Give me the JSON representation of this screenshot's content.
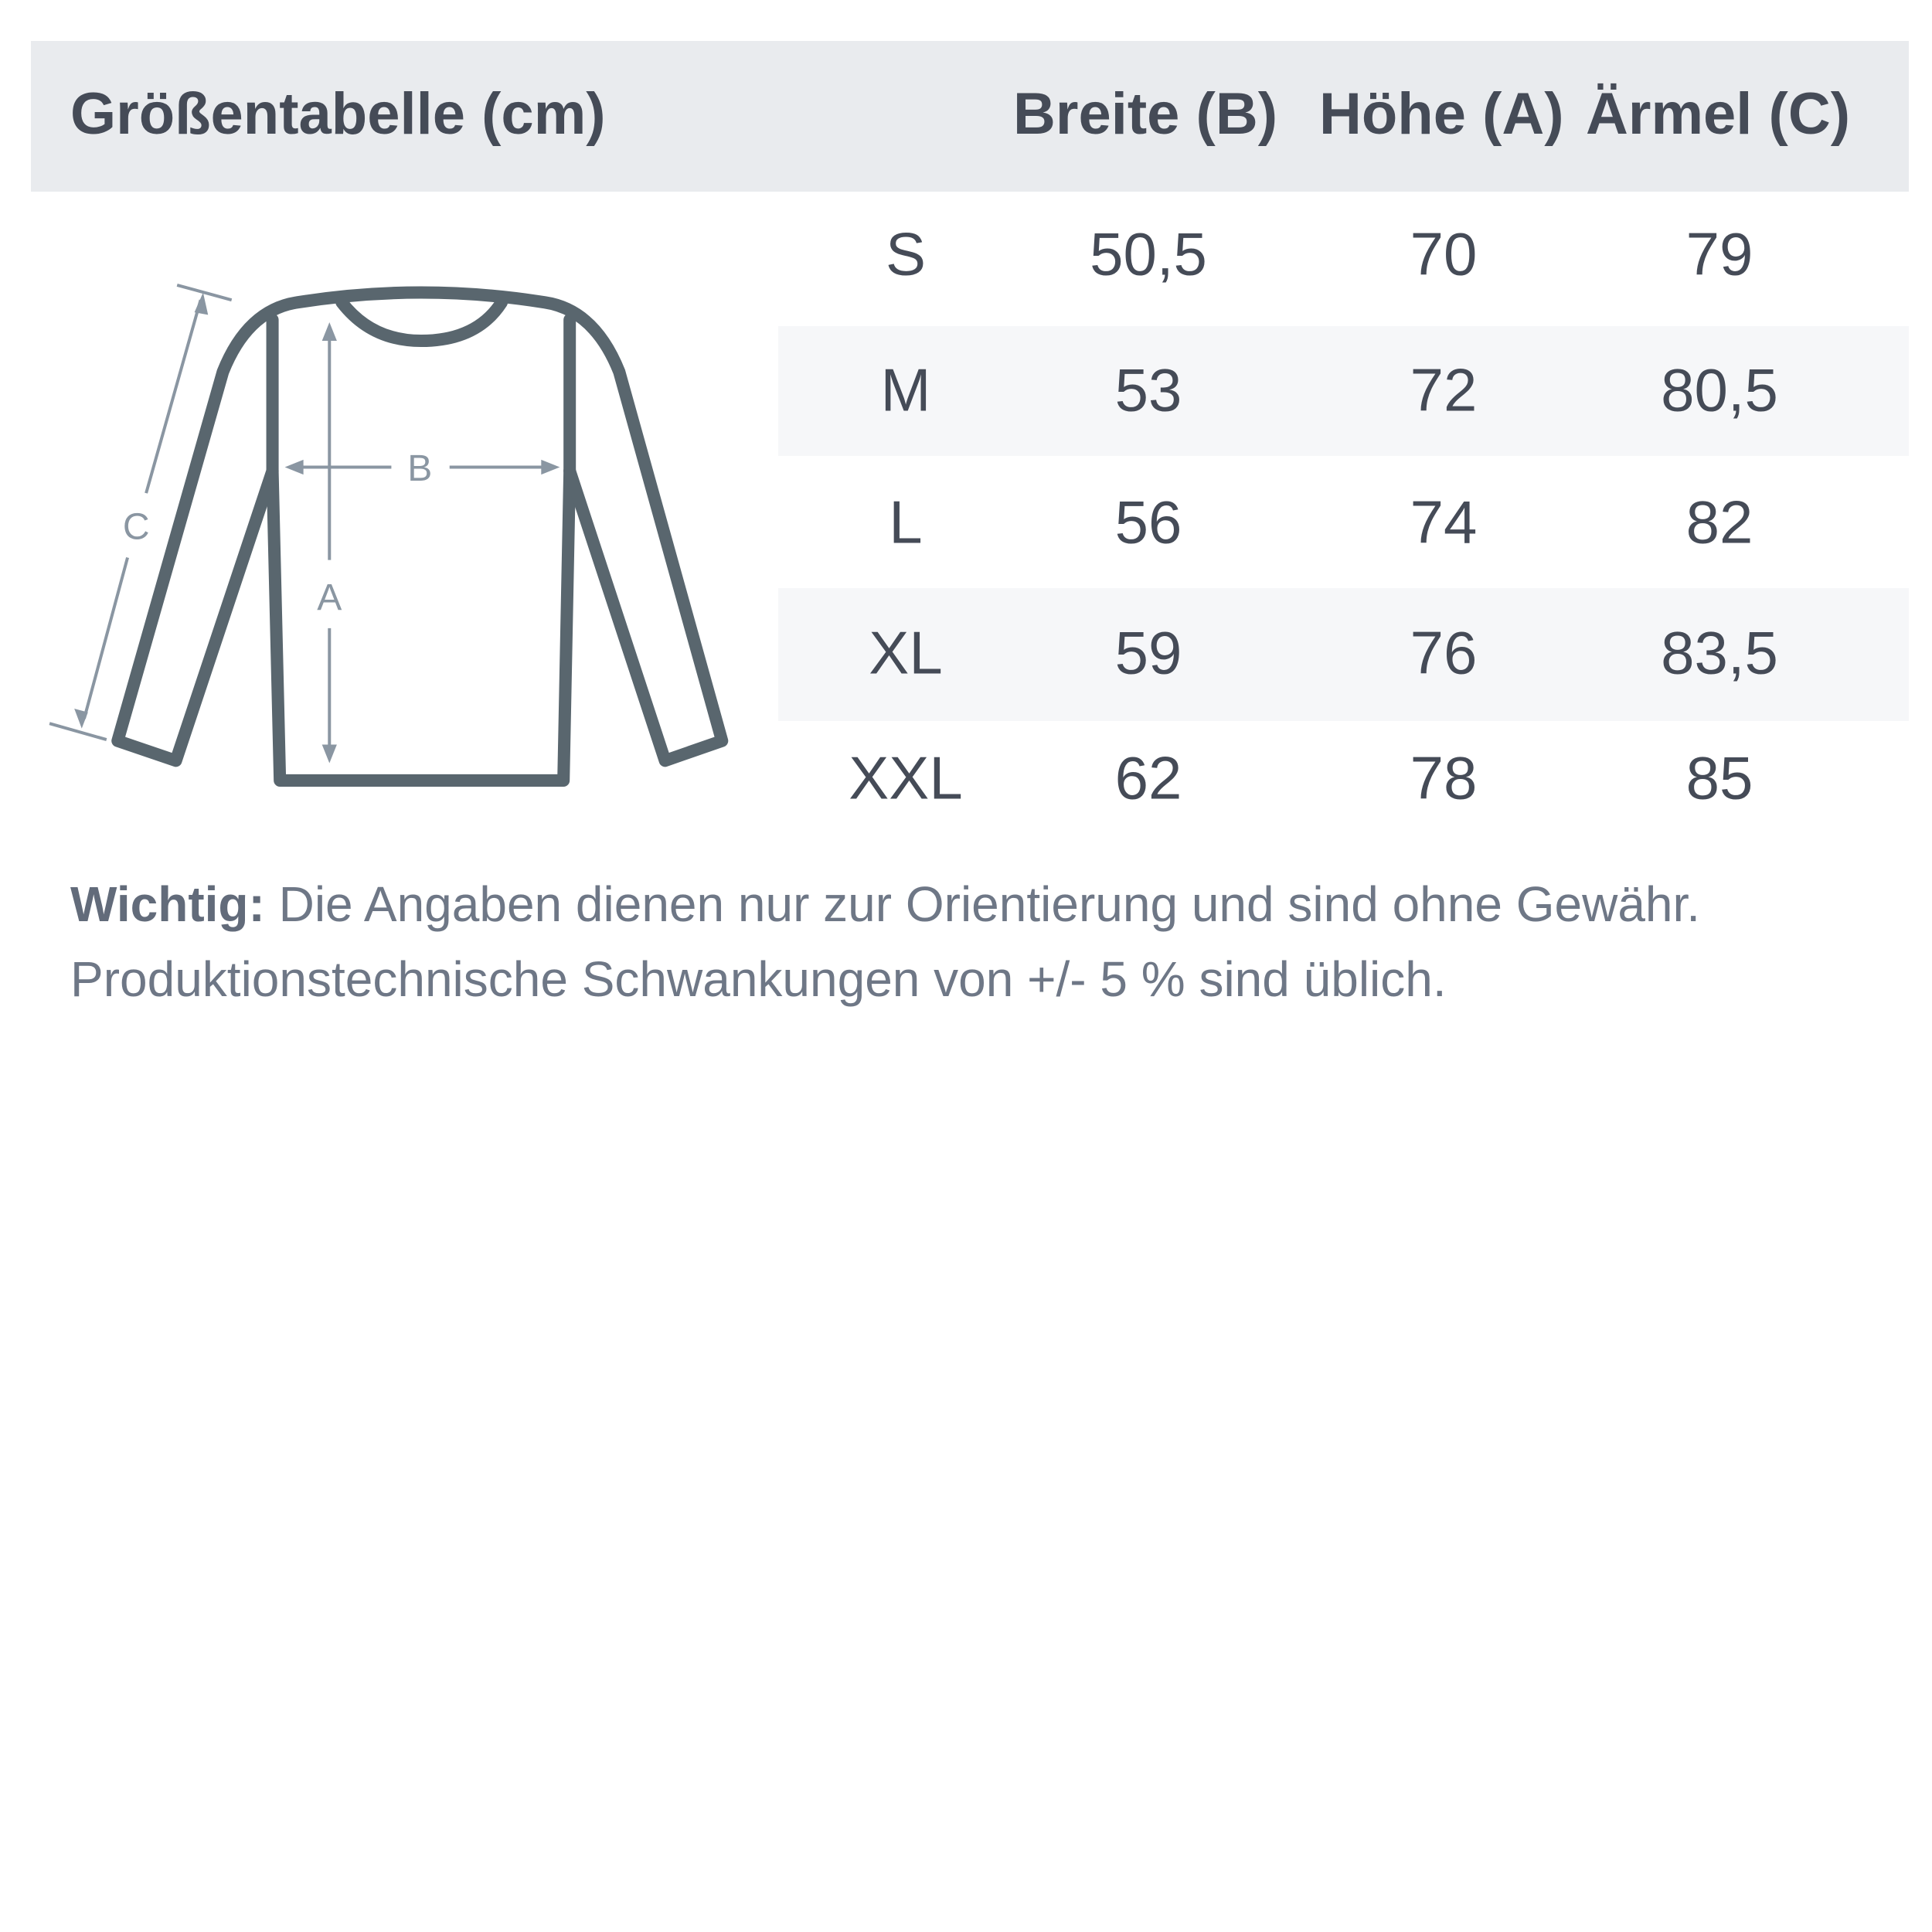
{
  "header": {
    "title": "Größentabelle (cm)",
    "columns": [
      "Breite (B)",
      "Höhe (A)",
      "Ärmel (C)"
    ]
  },
  "diagram": {
    "labels": {
      "width": "B",
      "height": "A",
      "sleeve": "C"
    },
    "icon": "long-sleeve-shirt-icon"
  },
  "rows": [
    {
      "size": "S",
      "breite": "50,5",
      "hoehe": "70",
      "aermel": "79"
    },
    {
      "size": "M",
      "breite": "53",
      "hoehe": "72",
      "aermel": "80,5"
    },
    {
      "size": "L",
      "breite": "56",
      "hoehe": "74",
      "aermel": "82"
    },
    {
      "size": "XL",
      "breite": "59",
      "hoehe": "76",
      "aermel": "83,5"
    },
    {
      "size": "XXL",
      "breite": "62",
      "hoehe": "78",
      "aermel": "85"
    }
  ],
  "note": {
    "label": "Wichtig:",
    "line1": "Die Angaben dienen nur zur Orientierung und sind ohne Gewähr.",
    "line2": "Produktionstechnische Schwankungen von +/- 5 % sind üblich."
  },
  "colors": {
    "header_bg": "#e9ebee",
    "text": "#454b57",
    "shirt": "#59666e",
    "measure": "#8a96a2",
    "stripe": "#f6f7f9"
  }
}
